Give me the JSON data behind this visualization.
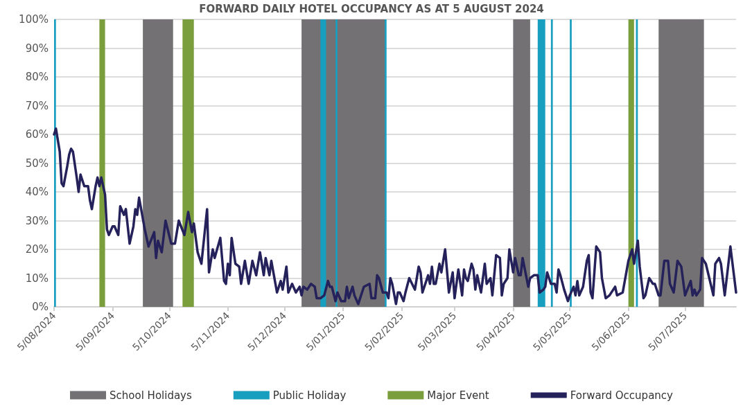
{
  "chart_data": {
    "type": "line",
    "title": "FORWARD DAILY HOTEL OCCUPANCY AS AT 5 AUGUST 2024",
    "xlim": [
      "2024-08-05",
      "2025-08-01"
    ],
    "xticks": [
      {
        "value": "2024-08-05",
        "label": "5/08/2024"
      },
      {
        "value": "2024-09-05",
        "label": "5/09/2024"
      },
      {
        "value": "2024-10-05",
        "label": "5/10/2024"
      },
      {
        "value": "2024-11-05",
        "label": "5/11/2024"
      },
      {
        "value": "2024-12-05",
        "label": "5/12/2024"
      },
      {
        "value": "2025-01-05",
        "label": "5/01/2025"
      },
      {
        "value": "2025-02-05",
        "label": "5/02/2025"
      },
      {
        "value": "2025-03-05",
        "label": "5/03/2025"
      },
      {
        "value": "2025-04-05",
        "label": "5/04/2025"
      },
      {
        "value": "2025-05-05",
        "label": "5/05/2025"
      },
      {
        "value": "2025-06-05",
        "label": "5/06/2025"
      },
      {
        "value": "2025-07-05",
        "label": "5/07/2025"
      }
    ],
    "ylim": [
      0,
      100
    ],
    "yticks": [
      {
        "value": 0,
        "label": "0%"
      },
      {
        "value": 10,
        "label": "10%"
      },
      {
        "value": 20,
        "label": "20%"
      },
      {
        "value": 30,
        "label": "30%"
      },
      {
        "value": 40,
        "label": "40%"
      },
      {
        "value": 50,
        "label": "50%"
      },
      {
        "value": 60,
        "label": "60%"
      },
      {
        "value": 70,
        "label": "70%"
      },
      {
        "value": 80,
        "label": "80%"
      },
      {
        "value": 90,
        "label": "90%"
      },
      {
        "value": 100,
        "label": "100%"
      }
    ],
    "grid": "y",
    "legend": "bottom",
    "marker": "none",
    "line_style": "solid",
    "bands": [
      {
        "axis": "x",
        "from": "2024-09-21",
        "to": "2024-10-07",
        "label": "School Holidays",
        "color": "#737174"
      },
      {
        "axis": "x",
        "from": "2024-12-14",
        "to": "2025-01-27",
        "color": "#737174"
      },
      {
        "axis": "x",
        "from": "2025-04-05",
        "to": "2025-04-14",
        "color": "#737174"
      },
      {
        "axis": "x",
        "from": "2025-06-21",
        "to": "2025-07-15",
        "color": "#737174"
      },
      {
        "axis": "x",
        "from": "2024-08-05",
        "to": "2024-08-06",
        "label": "Public Holiday",
        "color": "#189fbf"
      },
      {
        "axis": "x",
        "from": "2024-12-24",
        "to": "2024-12-27",
        "color": "#189fbf"
      },
      {
        "axis": "x",
        "from": "2025-01-01",
        "to": "2025-01-02",
        "color": "#189fbf"
      },
      {
        "axis": "x",
        "from": "2025-01-27",
        "to": "2025-01-28",
        "color": "#189fbf"
      },
      {
        "axis": "x",
        "from": "2025-04-18",
        "to": "2025-04-22",
        "color": "#189fbf"
      },
      {
        "axis": "x",
        "from": "2025-04-25",
        "to": "2025-04-26",
        "color": "#189fbf"
      },
      {
        "axis": "x",
        "from": "2025-05-05",
        "to": "2025-05-06",
        "color": "#189fbf"
      },
      {
        "axis": "x",
        "from": "2025-06-09",
        "to": "2025-06-10",
        "color": "#189fbf"
      },
      {
        "axis": "x",
        "from": "2024-08-29",
        "to": "2024-09-01",
        "label": "Major Event",
        "color": "#7a9e3c"
      },
      {
        "axis": "x",
        "from": "2024-10-12",
        "to": "2024-10-18",
        "color": "#7a9e3c"
      },
      {
        "axis": "x",
        "from": "2025-06-05",
        "to": "2025-06-08",
        "color": "#7a9e3c"
      }
    ],
    "series": [
      {
        "name": "Forward Occupancy",
        "color": "#25215a",
        "x": [
          "2024-08-05",
          "2024-08-06",
          "2024-08-08",
          "2024-08-09",
          "2024-08-10",
          "2024-08-12",
          "2024-08-13",
          "2024-08-14",
          "2024-08-15",
          "2024-08-17",
          "2024-08-18",
          "2024-08-19",
          "2024-08-21",
          "2024-08-23",
          "2024-08-24",
          "2024-08-25",
          "2024-08-27",
          "2024-08-28",
          "2024-08-29",
          "2024-08-30",
          "2024-09-01",
          "2024-09-02",
          "2024-09-03",
          "2024-09-05",
          "2024-09-06",
          "2024-09-08",
          "2024-09-09",
          "2024-09-11",
          "2024-09-12",
          "2024-09-14",
          "2024-09-16",
          "2024-09-17",
          "2024-09-18",
          "2024-09-19",
          "2024-09-22",
          "2024-09-24",
          "2024-09-27",
          "2024-09-28",
          "2024-09-29",
          "2024-10-01",
          "2024-10-03",
          "2024-10-06",
          "2024-10-08",
          "2024-10-10",
          "2024-10-13",
          "2024-10-15",
          "2024-10-17",
          "2024-10-18",
          "2024-10-20",
          "2024-10-22",
          "2024-10-25",
          "2024-10-26",
          "2024-10-28",
          "2024-10-29",
          "2024-11-01",
          "2024-11-03",
          "2024-11-04",
          "2024-11-05",
          "2024-11-06",
          "2024-11-07",
          "2024-11-09",
          "2024-11-11",
          "2024-11-12",
          "2024-11-14",
          "2024-11-16",
          "2024-11-18",
          "2024-11-20",
          "2024-11-22",
          "2024-11-24",
          "2024-11-25",
          "2024-11-27",
          "2024-11-28",
          "2024-12-01",
          "2024-12-03",
          "2024-12-04",
          "2024-12-06",
          "2024-12-07",
          "2024-12-09",
          "2024-12-11",
          "2024-12-13",
          "2024-12-14",
          "2024-12-15",
          "2024-12-17",
          "2024-12-19",
          "2024-12-21",
          "2024-12-22",
          "2024-12-24",
          "2024-12-26",
          "2024-12-28",
          "2024-12-29",
          "2024-12-30",
          "2025-01-01",
          "2025-01-02",
          "2025-01-04",
          "2025-01-06",
          "2025-01-07",
          "2025-01-08",
          "2025-01-10",
          "2025-01-11",
          "2025-01-13",
          "2025-01-15",
          "2025-01-16",
          "2025-01-19",
          "2025-01-20",
          "2025-01-22",
          "2025-01-23",
          "2025-01-24",
          "2025-01-26",
          "2025-01-28",
          "2025-01-29",
          "2025-01-30",
          "2025-01-31",
          "2025-02-02",
          "2025-02-03",
          "2025-02-04",
          "2025-02-06",
          "2025-02-07",
          "2025-02-09",
          "2025-02-12",
          "2025-02-14",
          "2025-02-15",
          "2025-02-16",
          "2025-02-17",
          "2025-02-19",
          "2025-02-20",
          "2025-02-21",
          "2025-02-22",
          "2025-02-23",
          "2025-02-25",
          "2025-02-26",
          "2025-02-28",
          "2025-03-02",
          "2025-03-04",
          "2025-03-05",
          "2025-03-07",
          "2025-03-09",
          "2025-03-10",
          "2025-03-11",
          "2025-03-12",
          "2025-03-14",
          "2025-03-15",
          "2025-03-16",
          "2025-03-17",
          "2025-03-19",
          "2025-03-21",
          "2025-03-22",
          "2025-03-24",
          "2025-03-25",
          "2025-03-27",
          "2025-03-29",
          "2025-03-30",
          "2025-03-31",
          "2025-04-02",
          "2025-04-03",
          "2025-04-05",
          "2025-04-06",
          "2025-04-08",
          "2025-04-09",
          "2025-04-10",
          "2025-04-13",
          "2025-04-14",
          "2025-04-16",
          "2025-04-18",
          "2025-04-19",
          "2025-04-21",
          "2025-04-22",
          "2025-04-23",
          "2025-04-25",
          "2025-04-27",
          "2025-04-28",
          "2025-04-29",
          "2025-04-30",
          "2025-05-02",
          "2025-05-04",
          "2025-05-05",
          "2025-05-07",
          "2025-05-08",
          "2025-05-09",
          "2025-05-10",
          "2025-05-12",
          "2025-05-14",
          "2025-05-15",
          "2025-05-16",
          "2025-05-17",
          "2025-05-19",
          "2025-05-21",
          "2025-05-22",
          "2025-05-24",
          "2025-05-26",
          "2025-05-29",
          "2025-05-30",
          "2025-06-02",
          "2025-06-05",
          "2025-06-07",
          "2025-06-08",
          "2025-06-10",
          "2025-06-11",
          "2025-06-13",
          "2025-06-14",
          "2025-06-16",
          "2025-06-18",
          "2025-06-19",
          "2025-06-21",
          "2025-06-22",
          "2025-06-24",
          "2025-06-26",
          "2025-06-27",
          "2025-06-29",
          "2025-07-01",
          "2025-07-03",
          "2025-07-05",
          "2025-07-08",
          "2025-07-09",
          "2025-07-10",
          "2025-07-11",
          "2025-07-13",
          "2025-07-14",
          "2025-07-16",
          "2025-07-20",
          "2025-07-21",
          "2025-07-23",
          "2025-07-24",
          "2025-07-26",
          "2025-07-29",
          "2025-08-01"
        ],
        "values": [
          60,
          62,
          54,
          43,
          42,
          49,
          53,
          55,
          54,
          45,
          40,
          46,
          42,
          42,
          37,
          34,
          42,
          45,
          42,
          45,
          39,
          27,
          25,
          28,
          28,
          25,
          35,
          32,
          34,
          22,
          28,
          34,
          32,
          38,
          27,
          21,
          26,
          17,
          23,
          19,
          30,
          22,
          22,
          30,
          25,
          33,
          26,
          29,
          19,
          15,
          34,
          12,
          20,
          17,
          24,
          9,
          8,
          15,
          11,
          24,
          15,
          14,
          8,
          16,
          8,
          16,
          11,
          19,
          11,
          17,
          11,
          16,
          5,
          9,
          6,
          14,
          5,
          8,
          5,
          7,
          4,
          7,
          6,
          8,
          7,
          3,
          3,
          4,
          9,
          7,
          7,
          2,
          5,
          2,
          2,
          7,
          3,
          7,
          4,
          1,
          5,
          7,
          8,
          3,
          3,
          11,
          10,
          5,
          5,
          3,
          10,
          8,
          1,
          5,
          5,
          2,
          5,
          10,
          6,
          14,
          12,
          5,
          7,
          11,
          8,
          14,
          8,
          8,
          15,
          12,
          20,
          5,
          12,
          3,
          13,
          4,
          13,
          10,
          9,
          15,
          13,
          6,
          11,
          5,
          15,
          8,
          10,
          4,
          18,
          17,
          4,
          8,
          10,
          20,
          12,
          17,
          11,
          11,
          17,
          7,
          10,
          11,
          11,
          5,
          6,
          7,
          12,
          8,
          8,
          5,
          13,
          11,
          6,
          2,
          4,
          7,
          4,
          9,
          4,
          7,
          16,
          18,
          5,
          3,
          21,
          19,
          10,
          3,
          4,
          7,
          4,
          5,
          16,
          20,
          15,
          23,
          14,
          3,
          4,
          10,
          8,
          8,
          4,
          4,
          16,
          16,
          8,
          5,
          16,
          14,
          4,
          9,
          4,
          6,
          4,
          6,
          17,
          15,
          4,
          15,
          17,
          15,
          4,
          21,
          5
        ]
      }
    ]
  }
}
